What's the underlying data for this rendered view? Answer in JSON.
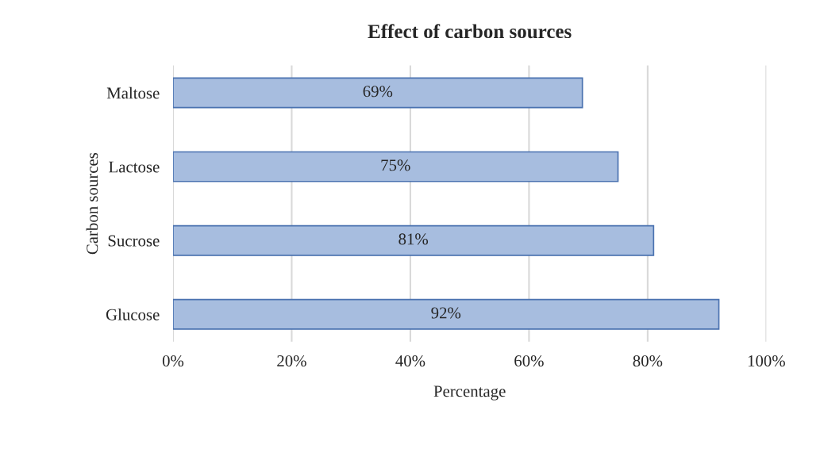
{
  "chart_data": {
    "type": "bar",
    "orientation": "horizontal",
    "title": "Effect of carbon sources",
    "xlabel": "Percentage",
    "ylabel": "Carbon sources",
    "categories": [
      "Maltose",
      "Lactose",
      "Sucrose",
      "Glucose"
    ],
    "values": [
      69,
      75,
      81,
      92
    ],
    "value_labels": [
      "69%",
      "75%",
      "81%",
      "92%"
    ],
    "color": "#a7bddf",
    "xlim": [
      0,
      100
    ],
    "xticks": [
      {
        "value": 0,
        "label": "0%"
      },
      {
        "value": 20,
        "label": "20%"
      },
      {
        "value": 40,
        "label": "40%"
      },
      {
        "value": 60,
        "label": "60%"
      },
      {
        "value": 80,
        "label": "80%"
      },
      {
        "value": 100,
        "label": "100%"
      }
    ],
    "grid": "x"
  }
}
